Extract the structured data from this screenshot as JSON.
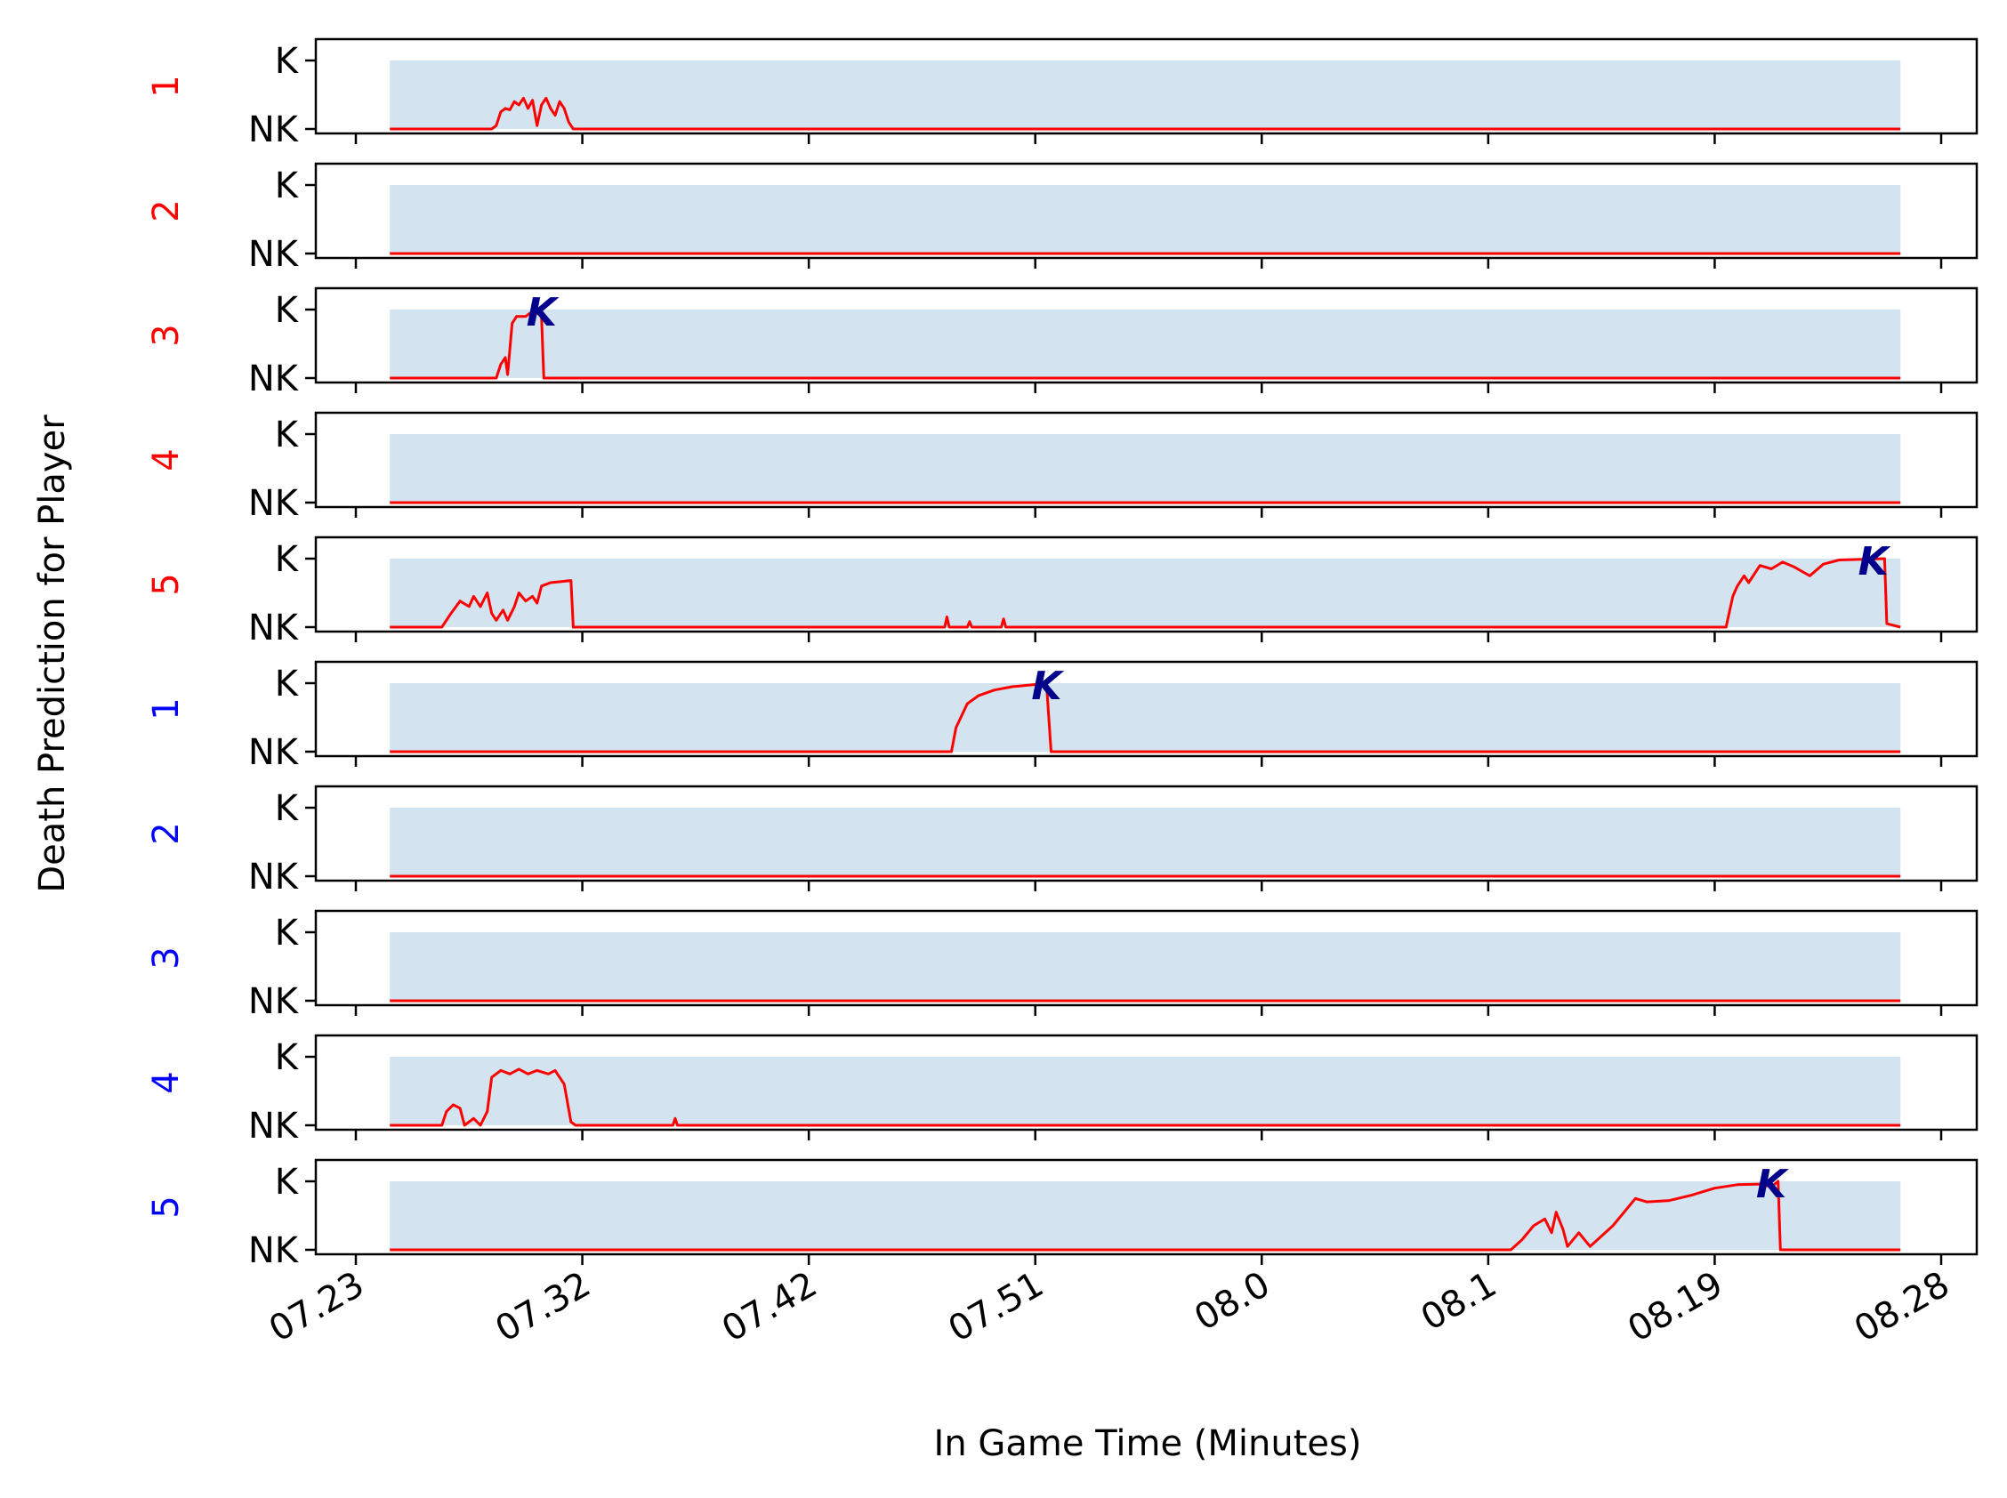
{
  "chart_data": {
    "type": "line",
    "ylabel": "Death Prediction for Player",
    "xlabel": "In Game Time (Minutes)",
    "x_tick_labels": [
      "07.23",
      "07.32",
      "07.42",
      "07.51",
      "08.0",
      "08.1",
      "08.19",
      "08.28"
    ],
    "y_tick_labels": [
      "NK",
      "K"
    ],
    "ylim": [
      0,
      1
    ],
    "x_range": [
      0,
      7
    ],
    "prediction_window": [
      0.15,
      6.82
    ],
    "kill_marker_label": "K",
    "colors": {
      "team_red": "#ff0000",
      "team_blue": "#0000ff",
      "prediction_line": "#ff0000",
      "window_fill": "#d3e3ef",
      "kill_marker": "#00008b"
    },
    "series": [
      {
        "label": "1",
        "team": "red",
        "points": [
          [
            0.15,
            0
          ],
          [
            0.6,
            0
          ],
          [
            0.62,
            0.05
          ],
          [
            0.64,
            0.25
          ],
          [
            0.66,
            0.3
          ],
          [
            0.68,
            0.28
          ],
          [
            0.7,
            0.4
          ],
          [
            0.72,
            0.35
          ],
          [
            0.74,
            0.45
          ],
          [
            0.76,
            0.3
          ],
          [
            0.78,
            0.42
          ],
          [
            0.8,
            0.05
          ],
          [
            0.82,
            0.35
          ],
          [
            0.84,
            0.45
          ],
          [
            0.86,
            0.3
          ],
          [
            0.88,
            0.2
          ],
          [
            0.9,
            0.4
          ],
          [
            0.92,
            0.3
          ],
          [
            0.94,
            0.1
          ],
          [
            0.96,
            0.0
          ],
          [
            6.82,
            0
          ]
        ],
        "kill_time": null
      },
      {
        "label": "2",
        "team": "red",
        "points": [
          [
            0.15,
            0
          ],
          [
            6.82,
            0
          ]
        ],
        "kill_time": null
      },
      {
        "label": "3",
        "team": "red",
        "points": [
          [
            0.15,
            0
          ],
          [
            0.62,
            0
          ],
          [
            0.64,
            0.2
          ],
          [
            0.66,
            0.3
          ],
          [
            0.67,
            0.05
          ],
          [
            0.69,
            0.8
          ],
          [
            0.71,
            0.9
          ],
          [
            0.75,
            0.9
          ],
          [
            0.77,
            0.95
          ],
          [
            0.8,
            0.95
          ],
          [
            0.82,
            0.9
          ],
          [
            0.83,
            0
          ],
          [
            6.82,
            0
          ]
        ],
        "kill_time": 0.82
      },
      {
        "label": "4",
        "team": "red",
        "points": [
          [
            0.15,
            0
          ],
          [
            6.82,
            0
          ]
        ],
        "kill_time": null
      },
      {
        "label": "5",
        "team": "red",
        "points": [
          [
            0.15,
            0
          ],
          [
            0.38,
            0
          ],
          [
            0.42,
            0.2
          ],
          [
            0.46,
            0.38
          ],
          [
            0.5,
            0.3
          ],
          [
            0.52,
            0.45
          ],
          [
            0.55,
            0.3
          ],
          [
            0.58,
            0.5
          ],
          [
            0.6,
            0.2
          ],
          [
            0.62,
            0.1
          ],
          [
            0.65,
            0.25
          ],
          [
            0.67,
            0.1
          ],
          [
            0.7,
            0.3
          ],
          [
            0.72,
            0.5
          ],
          [
            0.75,
            0.38
          ],
          [
            0.78,
            0.45
          ],
          [
            0.8,
            0.35
          ],
          [
            0.82,
            0.6
          ],
          [
            0.86,
            0.65
          ],
          [
            0.95,
            0.68
          ],
          [
            0.96,
            0
          ],
          [
            2.6,
            0
          ],
          [
            2.61,
            0.15
          ],
          [
            2.62,
            0
          ],
          [
            2.7,
            0
          ],
          [
            2.71,
            0.08
          ],
          [
            2.72,
            0
          ],
          [
            2.85,
            0
          ],
          [
            2.86,
            0.12
          ],
          [
            2.87,
            0
          ],
          [
            6.05,
            0
          ],
          [
            6.08,
            0.45
          ],
          [
            6.1,
            0.6
          ],
          [
            6.13,
            0.75
          ],
          [
            6.15,
            0.65
          ],
          [
            6.2,
            0.9
          ],
          [
            6.25,
            0.85
          ],
          [
            6.3,
            0.95
          ],
          [
            6.35,
            0.88
          ],
          [
            6.42,
            0.75
          ],
          [
            6.48,
            0.92
          ],
          [
            6.55,
            0.98
          ],
          [
            6.75,
            1.0
          ],
          [
            6.76,
            0.05
          ],
          [
            6.82,
            0
          ]
        ],
        "kill_time": 6.7
      },
      {
        "label": "1",
        "team": "blue",
        "points": [
          [
            0.15,
            0
          ],
          [
            2.63,
            0
          ],
          [
            2.65,
            0.35
          ],
          [
            2.7,
            0.7
          ],
          [
            2.75,
            0.82
          ],
          [
            2.82,
            0.9
          ],
          [
            2.9,
            0.95
          ],
          [
            3.0,
            0.98
          ],
          [
            3.05,
            0.98
          ],
          [
            3.07,
            0
          ],
          [
            6.82,
            0
          ]
        ],
        "kill_time": 3.05
      },
      {
        "label": "2",
        "team": "blue",
        "points": [
          [
            0.15,
            0
          ],
          [
            6.82,
            0
          ]
        ],
        "kill_time": null
      },
      {
        "label": "3",
        "team": "blue",
        "points": [
          [
            0.15,
            0
          ],
          [
            6.82,
            0
          ]
        ],
        "kill_time": null
      },
      {
        "label": "4",
        "team": "blue",
        "points": [
          [
            0.15,
            0
          ],
          [
            0.38,
            0
          ],
          [
            0.4,
            0.2
          ],
          [
            0.43,
            0.3
          ],
          [
            0.46,
            0.25
          ],
          [
            0.48,
            0
          ],
          [
            0.52,
            0.1
          ],
          [
            0.55,
            0.0
          ],
          [
            0.58,
            0.2
          ],
          [
            0.6,
            0.7
          ],
          [
            0.64,
            0.8
          ],
          [
            0.68,
            0.75
          ],
          [
            0.72,
            0.82
          ],
          [
            0.76,
            0.75
          ],
          [
            0.8,
            0.8
          ],
          [
            0.85,
            0.75
          ],
          [
            0.88,
            0.8
          ],
          [
            0.92,
            0.6
          ],
          [
            0.95,
            0.05
          ],
          [
            0.97,
            0.0
          ],
          [
            1.4,
            0
          ],
          [
            1.41,
            0.1
          ],
          [
            1.42,
            0
          ],
          [
            6.82,
            0
          ]
        ],
        "kill_time": null
      },
      {
        "label": "5",
        "team": "blue",
        "points": [
          [
            0.15,
            0
          ],
          [
            5.1,
            0
          ],
          [
            5.15,
            0.15
          ],
          [
            5.2,
            0.35
          ],
          [
            5.25,
            0.45
          ],
          [
            5.28,
            0.25
          ],
          [
            5.3,
            0.55
          ],
          [
            5.33,
            0.3
          ],
          [
            5.35,
            0.05
          ],
          [
            5.4,
            0.25
          ],
          [
            5.45,
            0.05
          ],
          [
            5.5,
            0.2
          ],
          [
            5.55,
            0.35
          ],
          [
            5.6,
            0.55
          ],
          [
            5.65,
            0.75
          ],
          [
            5.7,
            0.7
          ],
          [
            5.8,
            0.72
          ],
          [
            5.9,
            0.8
          ],
          [
            6.0,
            0.9
          ],
          [
            6.1,
            0.95
          ],
          [
            6.2,
            0.96
          ],
          [
            6.25,
            0.92
          ],
          [
            6.28,
            1.0
          ],
          [
            6.29,
            0
          ],
          [
            6.82,
            0
          ]
        ],
        "kill_time": 6.25
      }
    ]
  }
}
